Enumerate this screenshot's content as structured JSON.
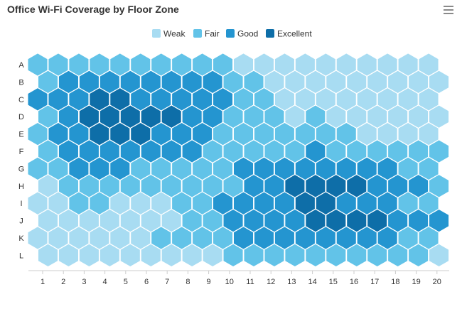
{
  "title": "Office Wi-Fi Coverage by Floor Zone",
  "menu_icon": "hamburger-menu-icon",
  "chart_data": {
    "type": "heatmap",
    "subtype": "hexbin",
    "title": "Office Wi-Fi Coverage by Floor Zone",
    "x": [
      "1",
      "2",
      "3",
      "4",
      "5",
      "6",
      "7",
      "8",
      "9",
      "10",
      "11",
      "12",
      "13",
      "14",
      "15",
      "16",
      "17",
      "18",
      "19",
      "20"
    ],
    "y": [
      "A",
      "B",
      "C",
      "D",
      "E",
      "F",
      "G",
      "H",
      "I",
      "J",
      "K",
      "L"
    ],
    "legend_position": "top-center",
    "levels": [
      {
        "name": "Weak",
        "color": "#a8dcf2"
      },
      {
        "name": "Fair",
        "color": "#62c3e8"
      },
      {
        "name": "Good",
        "color": "#2495d0"
      },
      {
        "name": "Excellent",
        "color": "#0e6ea8"
      }
    ],
    "grid": [
      [
        1,
        1,
        1,
        1,
        1,
        1,
        1,
        1,
        1,
        1,
        0,
        0,
        0,
        0,
        0,
        0,
        0,
        0,
        0,
        0
      ],
      [
        1,
        2,
        2,
        2,
        2,
        2,
        2,
        2,
        2,
        1,
        1,
        0,
        0,
        0,
        0,
        0,
        0,
        0,
        0,
        0
      ],
      [
        2,
        2,
        2,
        3,
        3,
        2,
        2,
        2,
        2,
        2,
        1,
        1,
        0,
        0,
        0,
        0,
        0,
        0,
        0,
        0
      ],
      [
        1,
        2,
        3,
        3,
        3,
        3,
        3,
        2,
        2,
        1,
        1,
        1,
        0,
        1,
        0,
        0,
        0,
        0,
        0,
        0
      ],
      [
        1,
        2,
        2,
        3,
        3,
        3,
        2,
        2,
        2,
        1,
        1,
        1,
        1,
        1,
        1,
        1,
        0,
        0,
        0,
        0
      ],
      [
        1,
        2,
        2,
        2,
        2,
        2,
        2,
        2,
        1,
        1,
        1,
        1,
        1,
        2,
        1,
        1,
        1,
        1,
        1,
        1
      ],
      [
        1,
        1,
        2,
        2,
        2,
        1,
        1,
        1,
        1,
        1,
        2,
        2,
        2,
        2,
        2,
        2,
        2,
        2,
        1,
        1
      ],
      [
        0,
        1,
        1,
        1,
        1,
        1,
        1,
        1,
        1,
        1,
        2,
        2,
        3,
        3,
        3,
        3,
        2,
        2,
        2,
        1
      ],
      [
        0,
        0,
        1,
        1,
        0,
        0,
        0,
        1,
        1,
        2,
        2,
        2,
        2,
        3,
        3,
        2,
        2,
        2,
        1,
        1
      ],
      [
        0,
        0,
        0,
        0,
        0,
        0,
        0,
        1,
        1,
        2,
        2,
        2,
        2,
        3,
        3,
        3,
        3,
        2,
        2,
        2
      ],
      [
        0,
        0,
        0,
        0,
        0,
        0,
        1,
        1,
        1,
        1,
        2,
        2,
        2,
        2,
        2,
        2,
        2,
        2,
        1,
        1
      ],
      [
        0,
        0,
        0,
        0,
        0,
        0,
        0,
        0,
        0,
        1,
        1,
        1,
        1,
        1,
        1,
        1,
        1,
        1,
        1,
        0
      ]
    ]
  }
}
